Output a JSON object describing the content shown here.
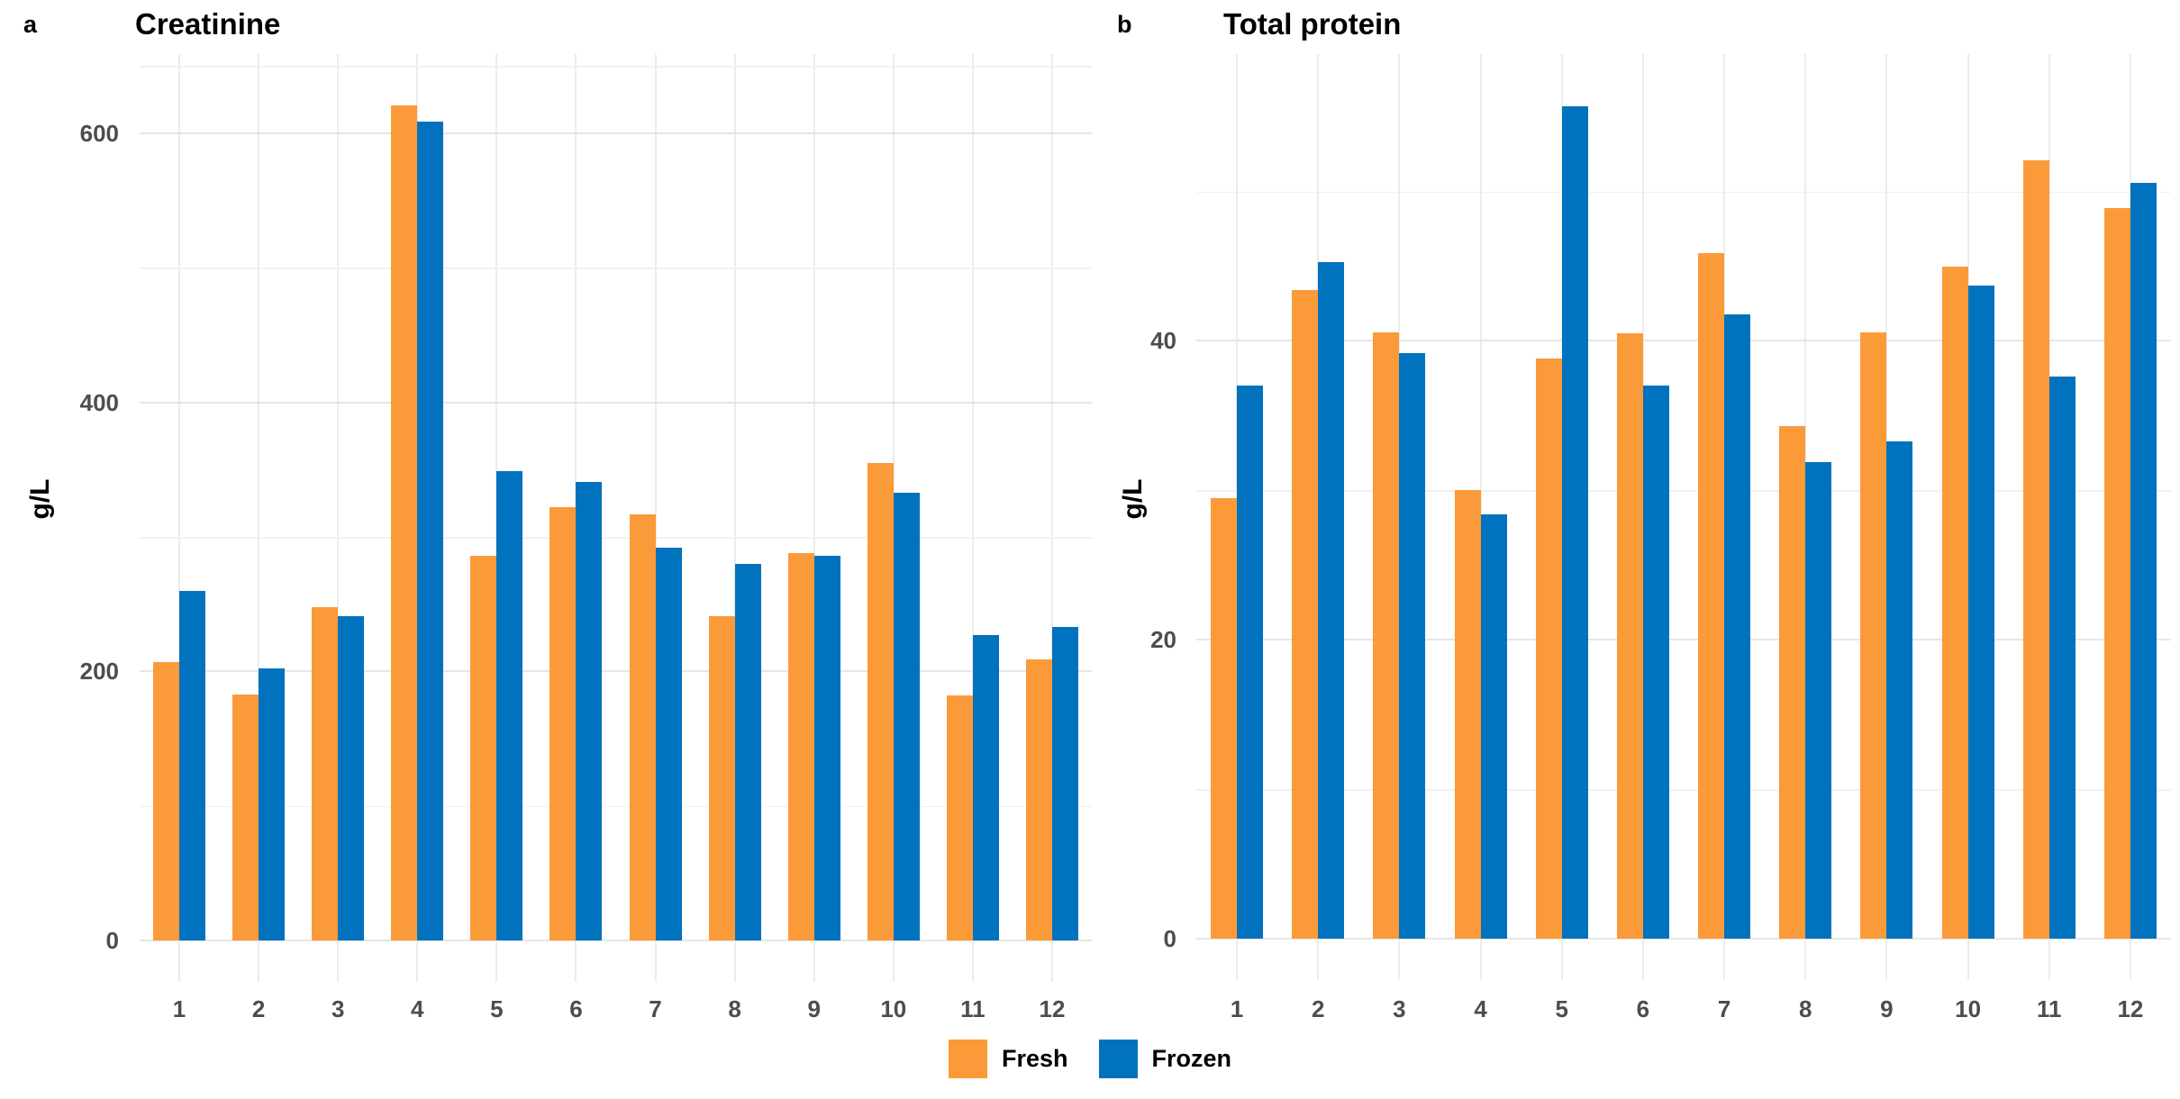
{
  "figure": {
    "panels": [
      {
        "letter": "a",
        "title": "Creatinine"
      },
      {
        "letter": "b",
        "title": "Total protein"
      }
    ]
  },
  "legend": {
    "items": [
      {
        "label": "Fresh",
        "color": "#FB9A38"
      },
      {
        "label": "Frozen",
        "color": "#0072BE"
      }
    ]
  },
  "colors": {
    "fresh": "#FB9A38",
    "frozen": "#0072BE",
    "grid_major": "#E6E6E6",
    "grid_minor": "#F1F1F1",
    "grid_vertical": "#ECECEC",
    "axis_text": "#4d4d4d"
  },
  "chart_data": [
    {
      "type": "bar",
      "panel": "a",
      "title": "Creatinine",
      "xlabel": "",
      "ylabel": "g/L",
      "categories": [
        "1",
        "2",
        "3",
        "4",
        "5",
        "6",
        "7",
        "8",
        "9",
        "10",
        "11",
        "12"
      ],
      "series": [
        {
          "name": "Fresh",
          "color": "#FB9A38",
          "values": [
            207,
            183,
            248,
            621,
            286,
            322,
            317,
            241,
            288,
            355,
            182,
            209
          ]
        },
        {
          "name": "Frozen",
          "color": "#0072BE",
          "values": [
            260,
            202,
            241,
            609,
            349,
            341,
            292,
            280,
            286,
            333,
            227,
            233
          ]
        }
      ],
      "ylim": [
        0,
        659
      ],
      "yticks_major": [
        0,
        200,
        400,
        600
      ],
      "ytick_labels": [
        "0",
        "200",
        "400",
        "600"
      ],
      "yticks_minor": [
        100,
        300,
        500,
        650
      ],
      "grid": true,
      "legend_position": "bottom"
    },
    {
      "type": "bar",
      "panel": "b",
      "title": "Total protein",
      "xlabel": "",
      "ylabel": "g/L",
      "categories": [
        "1",
        "2",
        "3",
        "4",
        "5",
        "6",
        "7",
        "8",
        "9",
        "10",
        "11",
        "12"
      ],
      "series": [
        {
          "name": "Fresh",
          "color": "#FB9A38",
          "values": [
            29.5,
            43.4,
            40.6,
            30.0,
            38.8,
            40.5,
            45.9,
            34.3,
            40.6,
            45.0,
            52.1,
            48.9
          ]
        },
        {
          "name": "Frozen",
          "color": "#0072BE",
          "values": [
            37.0,
            45.3,
            39.2,
            28.4,
            55.7,
            37.0,
            41.8,
            31.9,
            33.3,
            43.7,
            37.6,
            50.6
          ]
        }
      ],
      "ylim": [
        0,
        59.2
      ],
      "yticks_major": [
        0,
        20,
        40
      ],
      "ytick_labels": [
        "0",
        "20",
        "40"
      ],
      "yticks_minor": [
        10,
        30,
        50
      ],
      "grid": true,
      "legend_position": "bottom"
    }
  ]
}
